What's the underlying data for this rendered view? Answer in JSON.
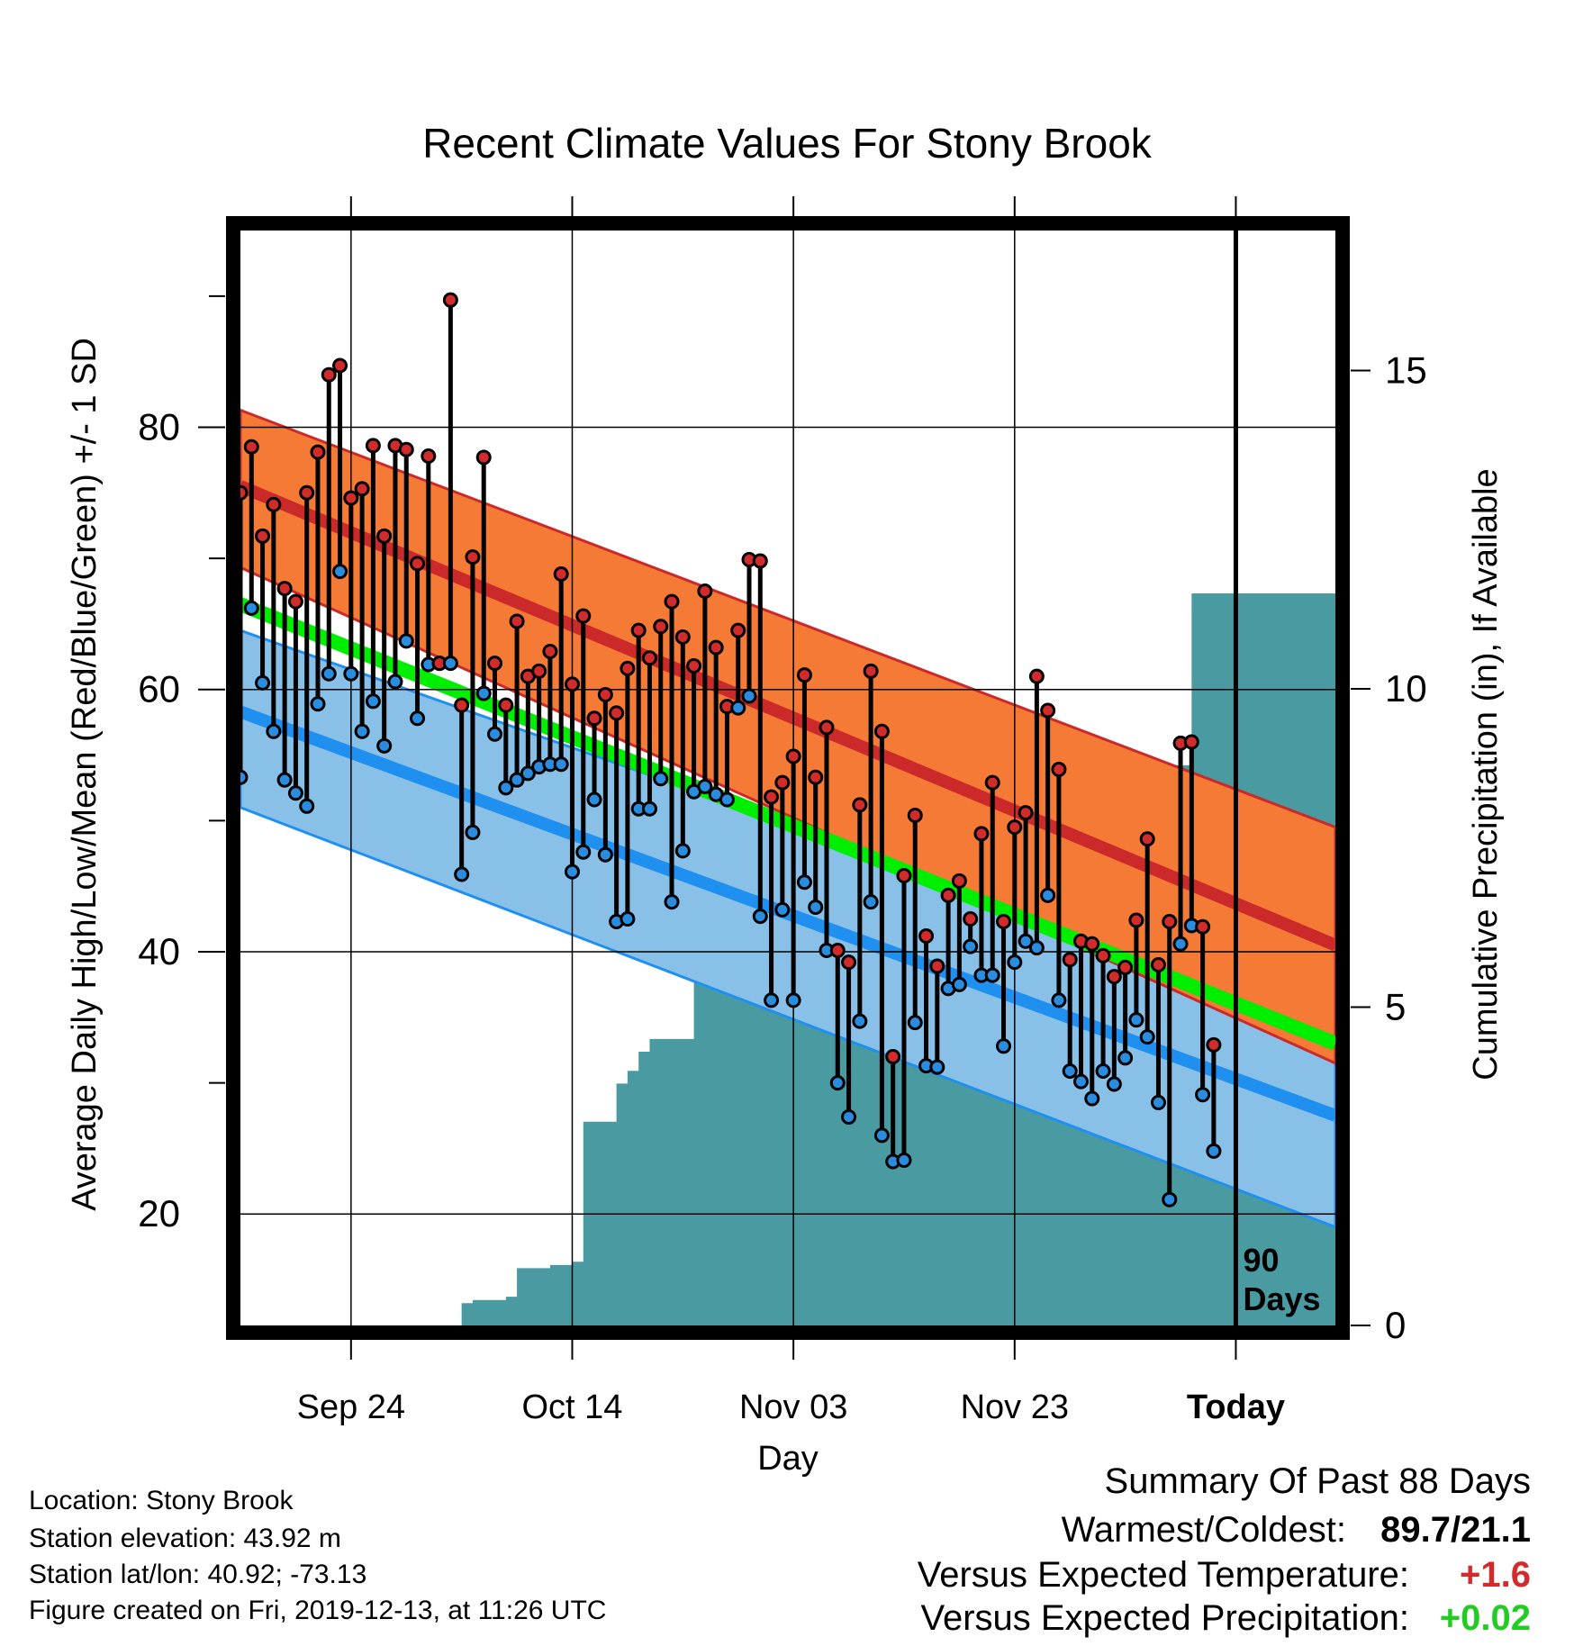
{
  "chart_data": {
    "type": "line",
    "title": "Recent Climate Values For Stony Brook",
    "xlabel": "Day",
    "ylabel": "Average Daily High/Low/Mean (Red/Blue/Green) +/- 1 SD",
    "y2label": "Cumulative Precipitation (in), If Available",
    "x_ticks": [
      {
        "label": "Sep 24",
        "day": 10
      },
      {
        "label": "Oct 14",
        "day": 30
      },
      {
        "label": "Nov 03",
        "day": 50
      },
      {
        "label": "Nov 23",
        "day": 70
      },
      {
        "label": "Today",
        "day": 90
      }
    ],
    "y_ticks": [
      20,
      40,
      60,
      80
    ],
    "y2_ticks": [
      0,
      5,
      10,
      15
    ],
    "xlim": [
      0,
      99
    ],
    "ylim": [
      11.5,
      95
    ],
    "y2lim": [
      0,
      17.2
    ],
    "today_label": [
      "90",
      "Days"
    ],
    "today_day": 90,
    "normals": {
      "high_mean": [
        [
          0,
          75.5
        ],
        [
          99,
          40.5
        ]
      ],
      "high_upper": [
        [
          0,
          81.3
        ],
        [
          99,
          49.5
        ]
      ],
      "high_lower": [
        [
          0,
          69.3
        ],
        [
          99,
          31.5
        ]
      ],
      "avg_mean": [
        [
          0,
          66.5
        ],
        [
          99,
          33.0
        ]
      ],
      "low_mean": [
        [
          0,
          58.3
        ],
        [
          99,
          27.5
        ]
      ],
      "low_upper": [
        [
          0,
          64.5
        ],
        [
          99,
          35.0
        ]
      ],
      "low_lower": [
        [
          0,
          51.0
        ],
        [
          99,
          19.0
        ]
      ]
    },
    "series": [
      {
        "name": "High",
        "color": "#d22b2b",
        "values": [
          75.0,
          78.5,
          71.7,
          74.1,
          67.7,
          66.7,
          75.0,
          78.1,
          84.0,
          84.7,
          74.6,
          75.3,
          78.6,
          71.7,
          78.6,
          78.3,
          69.6,
          77.8,
          62.0,
          89.7,
          58.8,
          70.1,
          77.7,
          62.0,
          58.8,
          65.2,
          61.0,
          61.4,
          62.9,
          68.8,
          60.4,
          65.6,
          57.8,
          59.6,
          58.2,
          61.6,
          64.5,
          62.4,
          64.8,
          66.7,
          64.0,
          61.8,
          67.5,
          63.2,
          58.7,
          64.5,
          69.9,
          69.8,
          51.8,
          52.9,
          54.9,
          61.1,
          53.3,
          57.1,
          40.1,
          39.2,
          51.2,
          61.4,
          56.8,
          32.0,
          45.8,
          50.4,
          41.2,
          38.9,
          44.3,
          45.4,
          42.5,
          49.0,
          52.9,
          42.3,
          49.5,
          50.6,
          61.0,
          58.4,
          53.9,
          39.4,
          40.8,
          40.6,
          39.7,
          38.1,
          38.8,
          42.4,
          48.6,
          39.0,
          42.3,
          55.9,
          56.0,
          41.9,
          32.9
        ]
      },
      {
        "name": "Low",
        "color": "#2a8cde",
        "values": [
          53.3,
          66.2,
          60.5,
          56.8,
          53.1,
          52.1,
          51.1,
          58.9,
          61.2,
          69.0,
          61.2,
          56.8,
          59.1,
          55.7,
          60.6,
          63.7,
          57.8,
          61.9,
          62.0,
          62.0,
          45.9,
          49.1,
          59.7,
          56.6,
          52.5,
          53.1,
          53.6,
          54.1,
          54.3,
          54.3,
          46.1,
          47.6,
          51.6,
          47.4,
          42.3,
          42.5,
          50.9,
          50.9,
          53.2,
          43.8,
          47.7,
          52.2,
          52.6,
          52.0,
          51.6,
          58.6,
          59.5,
          42.7,
          36.3,
          43.2,
          36.3,
          45.3,
          43.4,
          40.1,
          30.0,
          27.4,
          34.7,
          43.8,
          26.0,
          24.0,
          24.1,
          34.6,
          31.3,
          31.2,
          37.2,
          37.5,
          40.4,
          38.2,
          38.2,
          32.8,
          39.2,
          40.8,
          40.3,
          44.3,
          36.3,
          30.9,
          30.1,
          28.8,
          30.9,
          29.9,
          31.9,
          34.8,
          33.5,
          28.5,
          21.1,
          40.6,
          42.0,
          29.1,
          24.8
        ]
      },
      {
        "name": "Cumulative Precipitation",
        "color": "#4a9aa1",
        "values": [
          0,
          0,
          0,
          0,
          0,
          0,
          0,
          0,
          0,
          0,
          0,
          0,
          0,
          0,
          0,
          0,
          0,
          0,
          0,
          0,
          0.35,
          0.4,
          0.4,
          0.4,
          0.45,
          0.9,
          0.9,
          0.9,
          0.95,
          0.95,
          1.0,
          3.2,
          3.2,
          3.2,
          3.8,
          4.0,
          4.3,
          4.5,
          4.5,
          4.5,
          4.5,
          6.0,
          6.1,
          6.2,
          6.3,
          6.5,
          6.5,
          6.5,
          6.6,
          6.6,
          6.6,
          6.6,
          6.6,
          6.7,
          6.7,
          6.7,
          6.7,
          6.7,
          6.7,
          6.8,
          6.8,
          6.8,
          6.8,
          6.8,
          6.8,
          6.9,
          7.2,
          7.2,
          7.2,
          7.4,
          7.4,
          7.4,
          8.2,
          8.2,
          8.2,
          8.2,
          8.2,
          8.2,
          8.5,
          8.8,
          8.8,
          8.8,
          8.8,
          8.8,
          8.8,
          8.8,
          11.5,
          11.5,
          11.5,
          11.5
        ]
      }
    ]
  },
  "footer": {
    "location": "Location: Stony Brook",
    "elevation": "Station elevation: 43.92 m",
    "latlon": "Station lat/lon: 40.92; -73.13",
    "created": "Figure created on Fri, 2019-12-13, at 11:26 UTC"
  },
  "summary": {
    "heading": "Summary Of Past 88 Days",
    "warmest_coldest_label": "Warmest/Coldest:",
    "warmest_coldest_value": "89.7/21.1",
    "temp_label": "Versus Expected Temperature:",
    "temp_value": "+1.6",
    "temp_color": "#d22b2b",
    "precip_label": "Versus Expected Precipitation:",
    "precip_value": "+0.02",
    "precip_color": "#22cc22"
  },
  "colors": {
    "high_band": "#f47a36",
    "high_mean": "#cc2a2a",
    "mean_line": "#00ee00",
    "low_band": "#88c0e8",
    "low_mean": "#2090f0",
    "precip_fill": "#4a9aa1"
  }
}
